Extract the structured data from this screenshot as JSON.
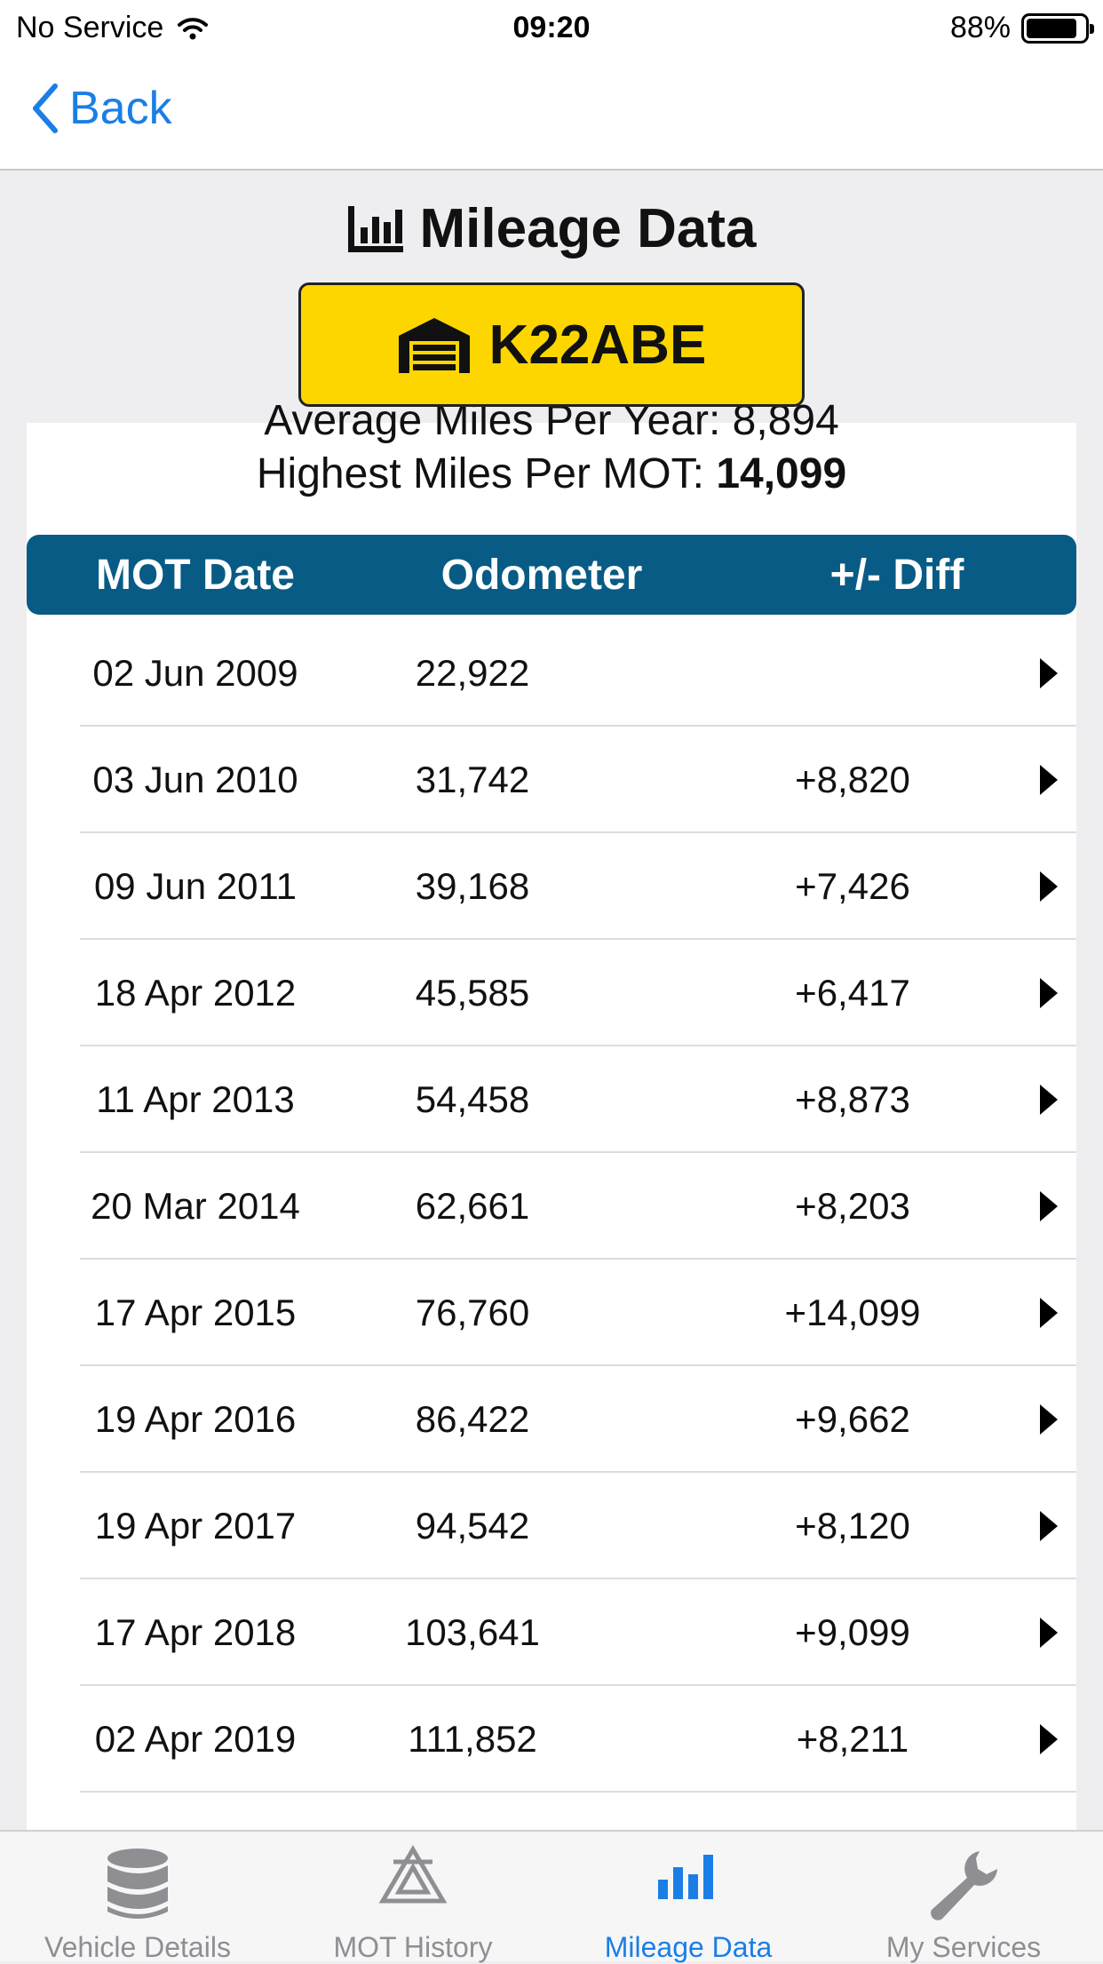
{
  "status_bar": {
    "carrier": "No Service",
    "time": "09:20",
    "battery": "88%"
  },
  "nav": {
    "back_label": "Back"
  },
  "header": {
    "title": "Mileage Data",
    "plate": "K22ABE"
  },
  "summary": {
    "cut_text": "Average Miles Per Year: 8,894",
    "highest_label": "Highest Miles Per MOT:",
    "highest_value": "14,099"
  },
  "table": {
    "headers": [
      "MOT Date",
      "Odometer",
      "+/- Diff"
    ],
    "rows": [
      {
        "date": "02 Jun 2009",
        "odometer": "22,922",
        "diff": ""
      },
      {
        "date": "03 Jun 2010",
        "odometer": "31,742",
        "diff": "+8,820"
      },
      {
        "date": "09 Jun 2011",
        "odometer": "39,168",
        "diff": "+7,426"
      },
      {
        "date": "18 Apr 2012",
        "odometer": "45,585",
        "diff": "+6,417"
      },
      {
        "date": "11 Apr 2013",
        "odometer": "54,458",
        "diff": "+8,873"
      },
      {
        "date": "20 Mar 2014",
        "odometer": "62,661",
        "diff": "+8,203"
      },
      {
        "date": "17 Apr 2015",
        "odometer": "76,760",
        "diff": "+14,099"
      },
      {
        "date": "19 Apr 2016",
        "odometer": "86,422",
        "diff": "+9,662"
      },
      {
        "date": "19 Apr 2017",
        "odometer": "94,542",
        "diff": "+8,120"
      },
      {
        "date": "17 Apr 2018",
        "odometer": "103,641",
        "diff": "+9,099"
      },
      {
        "date": "02 Apr 2019",
        "odometer": "111,852",
        "diff": "+8,211"
      }
    ]
  },
  "tabs": [
    {
      "label": "Vehicle Details",
      "icon": "database-icon",
      "active": false
    },
    {
      "label": "MOT History",
      "icon": "mot-triangles-icon",
      "active": false
    },
    {
      "label": "Mileage Data",
      "icon": "bar-chart-icon",
      "active": true
    },
    {
      "label": "My Services",
      "icon": "wrench-icon",
      "active": false
    }
  ],
  "colors": {
    "accent": "#1a7ee6",
    "table_header": "#085b85",
    "plate": "#fdd600",
    "inactive_tab": "#8e8e93"
  }
}
